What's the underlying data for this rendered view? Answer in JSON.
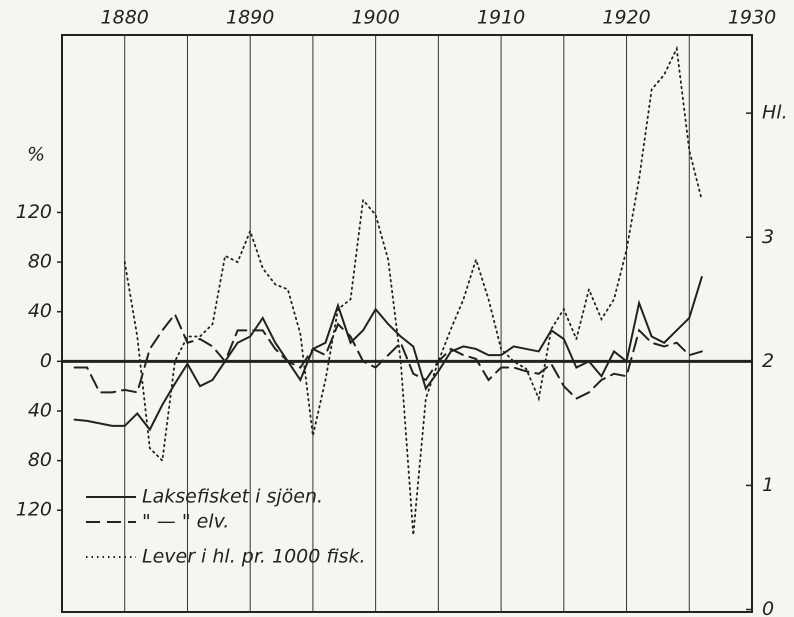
{
  "chart_data": {
    "type": "line",
    "y_label": "%",
    "x": [
      1876,
      1877,
      1878,
      1879,
      1880,
      1881,
      1882,
      1883,
      1884,
      1885,
      1886,
      1887,
      1888,
      1889,
      1890,
      1891,
      1892,
      1893,
      1894,
      1895,
      1896,
      1897,
      1898,
      1899,
      1900,
      1901,
      1902,
      1903,
      1904,
      1905,
      1906,
      1907,
      1908,
      1909,
      1910,
      1911,
      1912,
      1913,
      1914,
      1915,
      1916,
      1917,
      1918,
      1919,
      1920,
      1921,
      1922,
      1923,
      1924,
      1925,
      1926
    ],
    "xlim": [
      1875,
      1930
    ],
    "xticks": [
      1880,
      1890,
      1900,
      1910,
      1920,
      1930
    ],
    "minor_xticks": [
      1885,
      1895,
      1905,
      1915,
      1925
    ],
    "ylim": [
      -202,
      263
    ],
    "yticks": [
      {
        "value": -120,
        "label": "120"
      },
      {
        "value": -80,
        "label": "80"
      },
      {
        "value": -40,
        "label": "40"
      },
      0,
      40,
      80,
      120
    ],
    "y2lim": [
      -0.02,
      4.63
    ],
    "y2ticks": [
      0,
      1,
      2,
      3,
      {
        "value": 4,
        "label": "Hl."
      }
    ],
    "grid": true,
    "series": [
      {
        "name": "Laksefisket i sjöen.",
        "color": "#222222",
        "style": "solid",
        "values": [
          -47,
          -48,
          -50,
          -52,
          -52,
          -42,
          -55,
          -35,
          -18,
          -2,
          -20,
          -15,
          0,
          15,
          20,
          35,
          15,
          0,
          -15,
          10,
          15,
          45,
          15,
          25,
          42,
          30,
          20,
          12,
          -22,
          -8,
          8,
          12,
          10,
          5,
          5,
          12,
          10,
          8,
          25,
          18,
          -5,
          0,
          -12,
          8,
          0,
          47,
          20,
          15,
          25,
          35,
          68
        ]
      },
      {
        "name": "\" — \" elv.",
        "color": "#222222",
        "style": "dashed",
        "values": [
          -5,
          -5,
          -25,
          -25,
          -23,
          -25,
          10,
          25,
          38,
          15,
          18,
          12,
          0,
          25,
          25,
          25,
          10,
          0,
          -5,
          10,
          5,
          30,
          20,
          0,
          -5,
          5,
          15,
          -10,
          -15,
          0,
          10,
          5,
          2,
          -15,
          -5,
          -5,
          -8,
          -10,
          -2,
          -20,
          -30,
          -25,
          -15,
          -10,
          -12,
          25,
          15,
          12,
          15,
          5,
          8
        ]
      },
      {
        "name": "Lever i hl. pr. 1000 fisk.",
        "color": "#222222",
        "style": "dotted",
        "axis": "y2",
        "values": [
          null,
          null,
          null,
          null,
          2.8,
          2.2,
          1.3,
          1.2,
          2.0,
          2.2,
          2.2,
          2.3,
          2.85,
          2.8,
          3.05,
          2.75,
          2.62,
          2.58,
          2.22,
          1.4,
          1.85,
          2.42,
          2.5,
          3.3,
          3.18,
          2.82,
          2.0,
          0.6,
          1.7,
          2.0,
          2.26,
          2.5,
          2.82,
          2.5,
          2.1,
          2.0,
          1.94,
          1.7,
          2.26,
          2.42,
          2.18,
          2.58,
          2.34,
          2.5,
          2.9,
          3.47,
          4.19,
          4.31,
          4.52,
          3.7,
          3.3
        ]
      }
    ]
  }
}
